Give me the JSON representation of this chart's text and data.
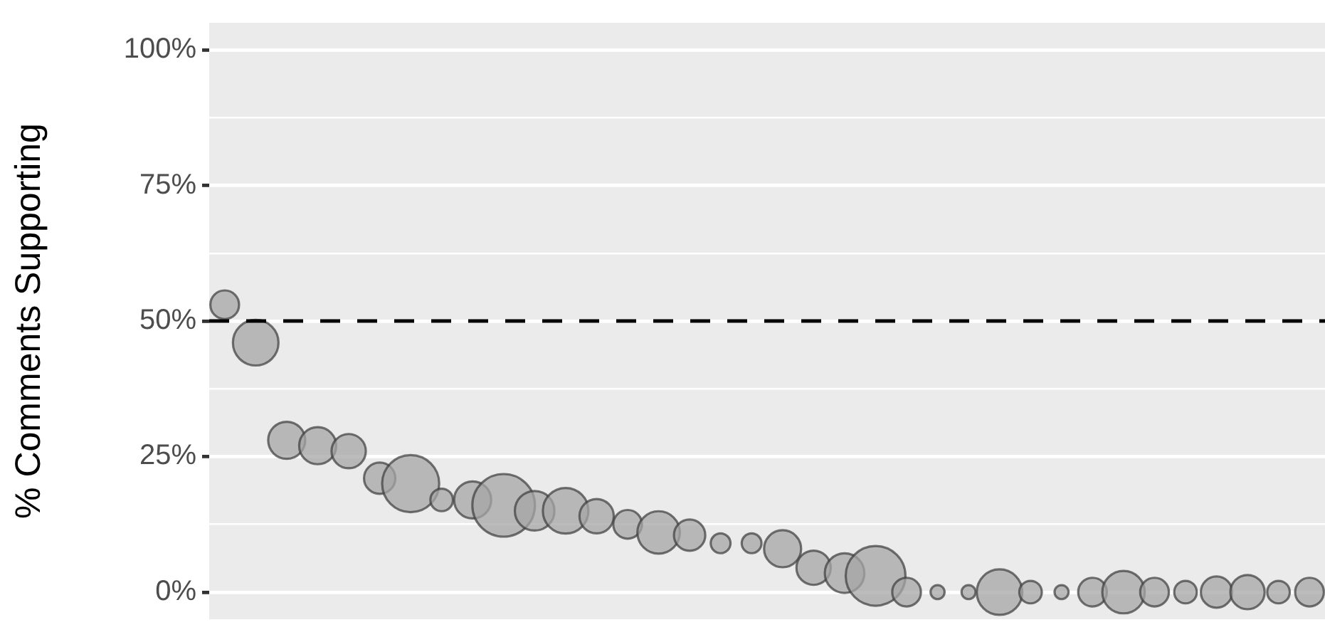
{
  "chart_data": {
    "type": "bubble",
    "ylabel": "% Comments Supporting",
    "categories": [
      null,
      null,
      null,
      null,
      null,
      null,
      null,
      null,
      null,
      null,
      null,
      null,
      null,
      null,
      null,
      null,
      null,
      null,
      null,
      null,
      null,
      null,
      null,
      null,
      null,
      null,
      null,
      null,
      null,
      null,
      null,
      null,
      null,
      null,
      null,
      null
    ],
    "values": [
      53,
      46,
      28,
      27,
      26,
      21,
      20,
      17,
      17,
      16,
      15,
      15,
      14,
      12.5,
      11,
      10.5,
      9,
      9,
      8,
      4.5,
      3.5,
      3,
      0,
      0,
      0,
      0,
      0,
      0,
      0,
      0,
      0,
      0,
      0,
      0,
      0,
      0
    ],
    "sizes": [
      0.21,
      0.53,
      0.35,
      0.35,
      0.3,
      0.25,
      0.83,
      0.13,
      0.35,
      1,
      0.4,
      0.53,
      0.3,
      0.21,
      0.46,
      0.25,
      0.1,
      0.1,
      0.35,
      0.3,
      0.4,
      0.91,
      0.21,
      0.05,
      0.05,
      0.53,
      0.13,
      0.05,
      0.21,
      0.46,
      0.21,
      0.13,
      0.25,
      0.3,
      0.13,
      0.21
    ],
    "color": "#a6a6a6",
    "marker": "circle",
    "ylim": [
      -5,
      105
    ],
    "yticks": [
      {
        "value": 0,
        "label": "0%"
      },
      {
        "value": 12.5,
        "label": null
      },
      {
        "value": 25,
        "label": "25%"
      },
      {
        "value": 37.5,
        "label": null
      },
      {
        "value": 50,
        "label": "50%"
      },
      {
        "value": 62.5,
        "label": null
      },
      {
        "value": 75,
        "label": "75%"
      },
      {
        "value": 87.5,
        "label": null
      },
      {
        "value": 100,
        "label": "100%"
      }
    ],
    "grid": "y",
    "tick_labels": "y",
    "ref_lines": [
      {
        "axis": "y",
        "value": 50,
        "color": "#000000",
        "line_style": "dashed"
      }
    ]
  }
}
